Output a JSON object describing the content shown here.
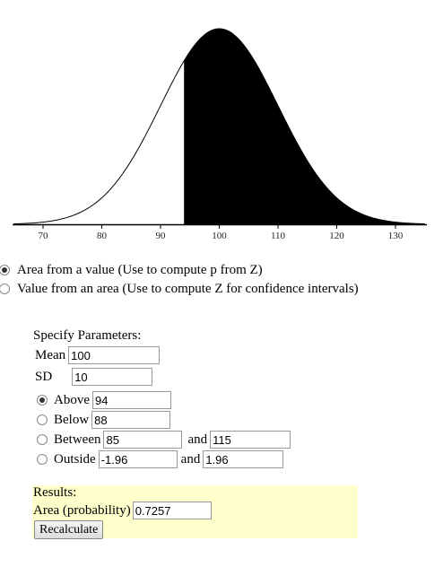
{
  "chart_data": {
    "type": "area",
    "mean": 100,
    "sd": 10,
    "shaded_from": 94,
    "shaded_direction": "above",
    "xlim": [
      65,
      135
    ],
    "x_ticks": [
      "70",
      "80",
      "90",
      "100",
      "110",
      "120",
      "130"
    ],
    "fill_color": "#000000"
  },
  "mode": {
    "options": [
      {
        "label": "Area from a value (Use to compute p from Z)",
        "checked": true
      },
      {
        "label": "Value from an area (Use to compute Z for confidence intervals)",
        "checked": false
      }
    ]
  },
  "params": {
    "title": "Specify Parameters:",
    "mean_label": "Mean",
    "mean_value": "100",
    "sd_label": "SD",
    "sd_value": "10",
    "above_label": "Above",
    "above_value": "94",
    "below_label": "Below",
    "below_value": "88",
    "between_label": "Between",
    "between_low": "85",
    "between_and": "and",
    "between_high": "115",
    "outside_label": "Outside",
    "outside_low": "-1.96",
    "outside_and": "and",
    "outside_high": "1.96"
  },
  "results": {
    "title": "Results:",
    "area_label": "Area (probability)",
    "area_value": "0.7257",
    "recalc_label": "Recalculate"
  }
}
